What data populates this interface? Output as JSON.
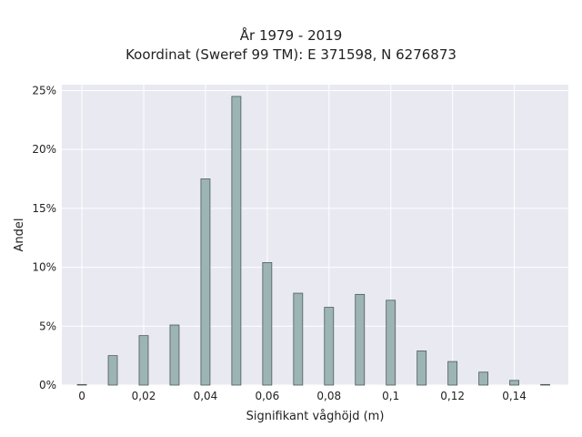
{
  "chart_data": {
    "type": "bar",
    "title_lines": [
      "År 1979 - 2019",
      "Koordinat (Sweref 99 TM): E 371598, N 6276873"
    ],
    "xlabel": "Signifikant våghöjd (m)",
    "ylabel": "Andel",
    "x": [
      0,
      0.01,
      0.02,
      0.03,
      0.04,
      0.05,
      0.06,
      0.07,
      0.08,
      0.09,
      0.1,
      0.11,
      0.12,
      0.13,
      0.14,
      0.15
    ],
    "values": [
      0.05,
      2.5,
      4.2,
      5.1,
      17.5,
      24.5,
      10.4,
      7.8,
      6.6,
      7.7,
      7.2,
      2.9,
      2.0,
      1.1,
      0.4,
      0.05
    ],
    "xlim": [
      -0.0065,
      0.1575
    ],
    "ylim": [
      0,
      25.5
    ],
    "x_ticks": [
      {
        "value": 0,
        "label": "0"
      },
      {
        "value": 0.02,
        "label": "0,02"
      },
      {
        "value": 0.04,
        "label": "0,04"
      },
      {
        "value": 0.06,
        "label": "0,06"
      },
      {
        "value": 0.08,
        "label": "0,08"
      },
      {
        "value": 0.1,
        "label": "0,1"
      },
      {
        "value": 0.12,
        "label": "0,12"
      },
      {
        "value": 0.14,
        "label": "0,14"
      }
    ],
    "y_ticks": [
      {
        "value": 0,
        "label": "0%"
      },
      {
        "value": 5,
        "label": "5%"
      },
      {
        "value": 10,
        "label": "10%"
      },
      {
        "value": 15,
        "label": "15%"
      },
      {
        "value": 20,
        "label": "20%"
      },
      {
        "value": 25,
        "label": "25%"
      }
    ],
    "grid": true,
    "colors": {
      "bar_fill": "#9db4b4",
      "bar_stroke": "#4a5a5a",
      "plot_background": "#e9e9f1",
      "grid": "#ffffff"
    }
  }
}
